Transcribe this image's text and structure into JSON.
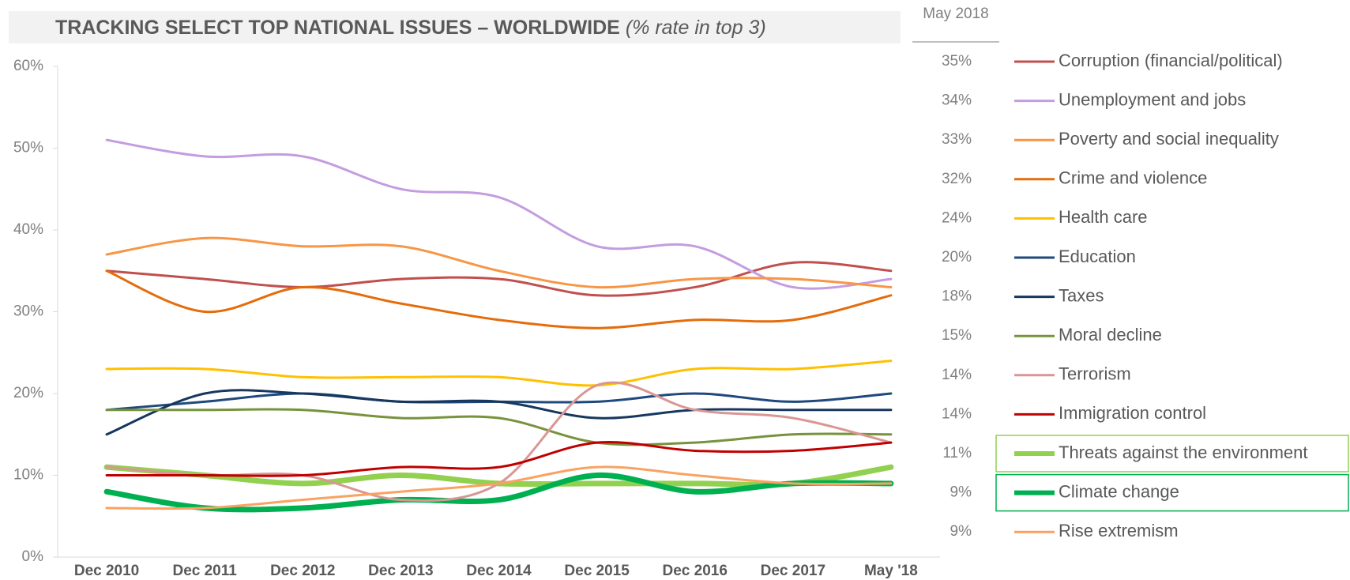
{
  "chart_data": {
    "type": "line",
    "title": "TRACKING SELECT TOP NATIONAL ISSUES – WORLDWIDE",
    "subtitle": "(% rate in top 3)",
    "legend_header": "May 2018",
    "categories": [
      "Dec 2010",
      "Dec 2011",
      "Dec 2012",
      "Dec 2013",
      "Dec 2014",
      "Dec 2015",
      "Dec 2016",
      "Dec 2017",
      "May '18"
    ],
    "ylim": [
      0,
      60
    ],
    "yticks": [
      {
        "value": 0,
        "label": "0%"
      },
      {
        "value": 10,
        "label": "10%"
      },
      {
        "value": 20,
        "label": "20%"
      },
      {
        "value": 30,
        "label": "30%"
      },
      {
        "value": 40,
        "label": "40%"
      },
      {
        "value": 50,
        "label": "50%"
      },
      {
        "value": 60,
        "label": "60%"
      }
    ],
    "series": [
      {
        "name": "Corruption (financial/political)",
        "color": "#c0504d",
        "line_width": 3,
        "legend_value": "35%",
        "values": [
          35,
          34,
          33,
          34,
          34,
          32,
          33,
          36,
          35
        ]
      },
      {
        "name": "Unemployment and jobs",
        "color": "#c49ce0",
        "line_width": 3,
        "legend_value": "34%",
        "values": [
          51,
          49,
          49,
          45,
          44,
          38,
          38,
          33,
          34
        ]
      },
      {
        "name": "Poverty and social inequality",
        "color": "#f79646",
        "line_width": 3,
        "legend_value": "33%",
        "values": [
          37,
          39,
          38,
          38,
          35,
          33,
          34,
          34,
          33
        ]
      },
      {
        "name": "Crime and violence",
        "color": "#e46c0a",
        "line_width": 3,
        "legend_value": "32%",
        "values": [
          35,
          30,
          33,
          31,
          29,
          28,
          29,
          29,
          32
        ]
      },
      {
        "name": "Health care",
        "color": "#ffc000",
        "line_width": 3,
        "legend_value": "24%",
        "values": [
          23,
          23,
          22,
          22,
          22,
          21,
          23,
          23,
          24
        ]
      },
      {
        "name": "Education",
        "color": "#1f497d",
        "line_width": 3,
        "legend_value": "20%",
        "values": [
          18,
          19,
          20,
          19,
          19,
          19,
          20,
          19,
          20
        ]
      },
      {
        "name": "Taxes",
        "color": "#17375e",
        "line_width": 3,
        "legend_value": "18%",
        "values": [
          15,
          20,
          20,
          19,
          19,
          17,
          18,
          18,
          18
        ]
      },
      {
        "name": "Moral decline",
        "color": "#77933c",
        "line_width": 3,
        "legend_value": "15%",
        "values": [
          18,
          18,
          18,
          17,
          17,
          14,
          14,
          15,
          15
        ]
      },
      {
        "name": "Terrorism",
        "color": "#d99694",
        "line_width": 3,
        "legend_value": "14%",
        "values": [
          11,
          10,
          10,
          7,
          9,
          21,
          18,
          17,
          14
        ]
      },
      {
        "name": "Immigration control",
        "color": "#c00000",
        "line_width": 3,
        "legend_value": "14%",
        "values": [
          10,
          10,
          10,
          11,
          11,
          14,
          13,
          13,
          14
        ]
      },
      {
        "name": "Threats against the environment",
        "color": "#92d050",
        "line_width": 7,
        "highlight": true,
        "legend_value": "11%",
        "values": [
          11,
          10,
          9,
          10,
          9,
          9,
          9,
          9,
          11
        ]
      },
      {
        "name": "Climate change",
        "color": "#00b050",
        "line_width": 7,
        "highlight": true,
        "legend_value": "9%",
        "values": [
          8,
          6,
          6,
          7,
          7,
          10,
          8,
          9,
          9
        ]
      },
      {
        "name": "Rise extremism",
        "color": "#f9a261",
        "line_width": 3,
        "legend_value": "9%",
        "values": [
          6,
          6,
          7,
          8,
          9,
          11,
          10,
          9,
          9
        ]
      }
    ]
  }
}
